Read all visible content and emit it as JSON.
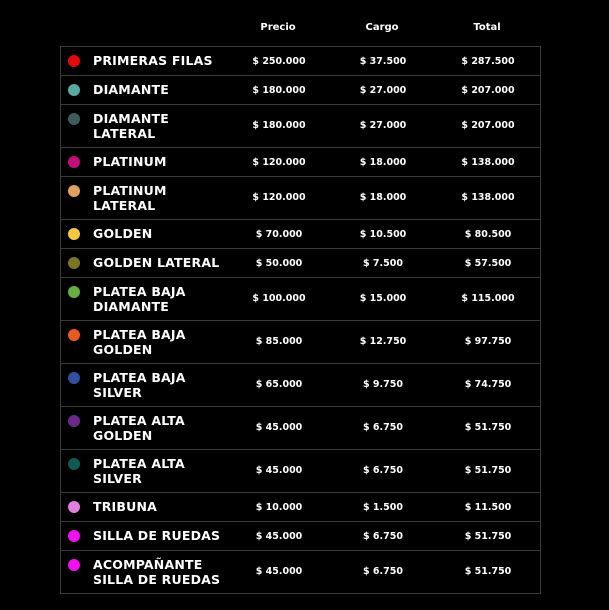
{
  "headers": {
    "precio": "Precio",
    "cargo": "Cargo",
    "total": "Total"
  },
  "rows": [
    {
      "name": "PRIMERAS FILAS",
      "color": "#e00a0a",
      "precio": "$ 250.000",
      "cargo": "$ 37.500",
      "total": "$ 287.500"
    },
    {
      "name": "DIAMANTE",
      "color": "#5aa9a0",
      "precio": "$ 180.000",
      "cargo": "$ 27.000",
      "total": "$ 207.000"
    },
    {
      "name": "DIAMANTE LATERAL",
      "color": "#3e5c5a",
      "precio": "$ 180.000",
      "cargo": "$ 27.000",
      "total": "$ 207.000"
    },
    {
      "name": "PLATINUM",
      "color": "#c01078",
      "precio": "$ 120.000",
      "cargo": "$ 18.000",
      "total": "$ 138.000"
    },
    {
      "name": "PLATINUM LATERAL",
      "color": "#e0a060",
      "precio": "$ 120.000",
      "cargo": "$ 18.000",
      "total": "$ 138.000"
    },
    {
      "name": "GOLDEN",
      "color": "#f5c842",
      "precio": "$ 70.000",
      "cargo": "$ 10.500",
      "total": "$ 80.500"
    },
    {
      "name": "GOLDEN LATERAL",
      "color": "#7a7428",
      "precio": "$ 50.000",
      "cargo": "$ 7.500",
      "total": "$ 57.500"
    },
    {
      "name": "PLATEA BAJA DIAMANTE",
      "color": "#6ab040",
      "precio": "$ 100.000",
      "cargo": "$ 15.000",
      "total": "$ 115.000"
    },
    {
      "name": "PLATEA BAJA GOLDEN",
      "color": "#e85a20",
      "precio": "$ 85.000",
      "cargo": "$ 12.750",
      "total": "$ 97.750"
    },
    {
      "name": "PLATEA BAJA SILVER",
      "color": "#3050a0",
      "precio": "$ 65.000",
      "cargo": "$ 9.750",
      "total": "$ 74.750"
    },
    {
      "name": "PLATEA ALTA GOLDEN",
      "color": "#6a2a8a",
      "precio": "$ 45.000",
      "cargo": "$ 6.750",
      "total": "$ 51.750"
    },
    {
      "name": "PLATEA ALTA SILVER",
      "color": "#105a50",
      "precio": "$ 45.000",
      "cargo": "$ 6.750",
      "total": "$ 51.750"
    },
    {
      "name": "TRIBUNA",
      "color": "#e080e0",
      "precio": "$ 10.000",
      "cargo": "$ 1.500",
      "total": "$ 11.500"
    },
    {
      "name": "SILLA DE RUEDAS",
      "color": "#f010f0",
      "precio": "$ 45.000",
      "cargo": "$ 6.750",
      "total": "$ 51.750"
    },
    {
      "name": "ACOMPAÑANTE SILLA DE RUEDAS",
      "color": "#f010f0",
      "precio": "$ 45.000",
      "cargo": "$ 6.750",
      "total": "$ 51.750"
    }
  ]
}
